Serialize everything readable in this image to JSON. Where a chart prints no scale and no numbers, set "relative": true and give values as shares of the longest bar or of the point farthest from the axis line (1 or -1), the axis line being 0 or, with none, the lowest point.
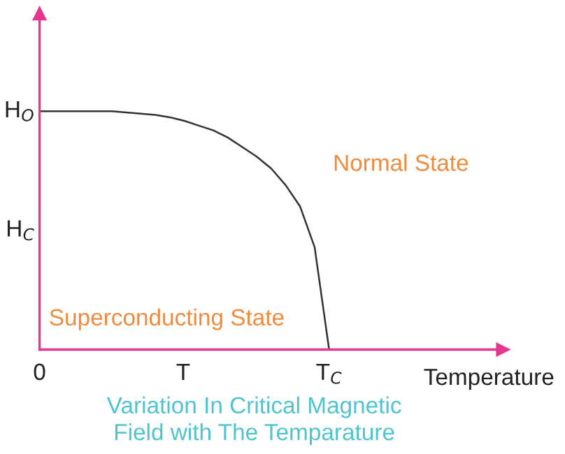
{
  "chart_data": {
    "type": "line",
    "title": "Variation In Critical Magnetic\nField with The Temparature",
    "xlabel": "Temperature",
    "relative": true,
    "categories": [
      null,
      null,
      null,
      null,
      null,
      null,
      null,
      null,
      null,
      null,
      null,
      null,
      null,
      null,
      null,
      null,
      null,
      null,
      null,
      null,
      null,
      null,
      null,
      null,
      null,
      null,
      null,
      null,
      null,
      null,
      null,
      null,
      null
    ],
    "series": [
      {
        "color": "#333333",
        "values": [
          1,
          1,
          1,
          1,
          1,
          1,
          0.995,
          0.99,
          0.985,
          0.975,
          0.96,
          0.94,
          0.92,
          0.89,
          0.85,
          0.81,
          0.76,
          0.69,
          0.6,
          0.43,
          0,
          null,
          null,
          null,
          null,
          null,
          null,
          null,
          null,
          null,
          null,
          null,
          null
        ]
      }
    ],
    "annotations": [
      "Normal State",
      "Superconducting State",
      "H$_{O}$",
      "H$_{C}$",
      "0",
      "T",
      "T$_{C}$"
    ],
    "grid": false,
    "legend": false
  }
}
